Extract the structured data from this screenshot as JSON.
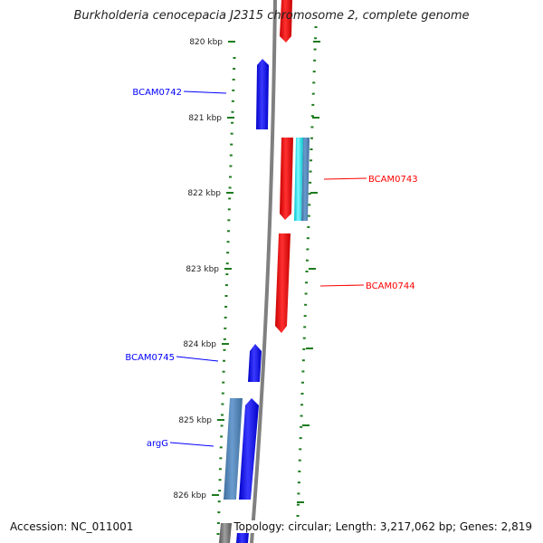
{
  "title": "Burkholderia cenocepacia J2315 chromosome 2, complete genome",
  "footer": {
    "accession": "Accession: NC_011001",
    "summary": "Topology: circular; Length: 3,217,062 bp; Genes: 2,819"
  },
  "ticks": [
    "820 kbp",
    "821 kbp",
    "822 kbp",
    "823 kbp",
    "824 kbp",
    "825 kbp",
    "826 kbp"
  ],
  "genes": [
    {
      "name": "BCAM0742",
      "strand": "forward",
      "color": "#0000ff"
    },
    {
      "name": "BCAM0743",
      "strand": "reverse",
      "color": "#ff0000"
    },
    {
      "name": "BCAM0744",
      "strand": "reverse",
      "color": "#ff0000"
    },
    {
      "name": "BCAM0745",
      "strand": "forward",
      "color": "#0000ff"
    },
    {
      "name": "argG",
      "strand": "forward",
      "color": "#0000ff"
    }
  ],
  "colors": {
    "forward": "#0000ff",
    "reverse": "#ff0000",
    "forward_feature": "#4a7fb5",
    "reverse_feature": "#00e5ee",
    "backbone": "#808080",
    "ticks": "#1e7b1e"
  }
}
